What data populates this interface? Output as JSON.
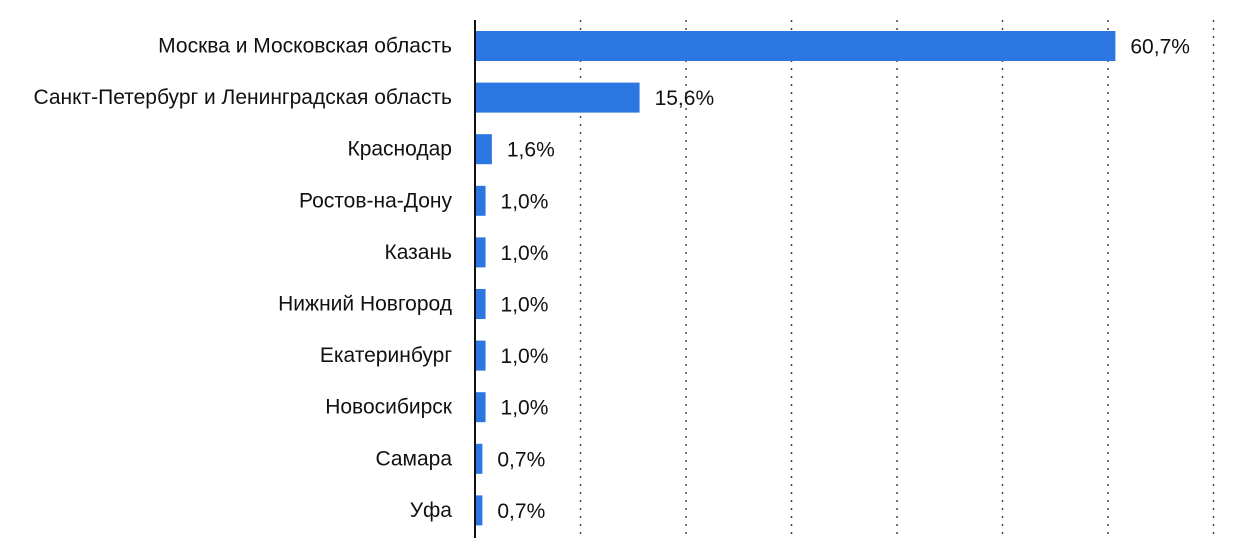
{
  "chart_data": {
    "type": "bar",
    "orientation": "horizontal",
    "title": "",
    "xlabel": "",
    "ylabel": "",
    "xlim": [
      0,
      70
    ],
    "grid": true,
    "legend": "none",
    "bar_color": "#2B76E0",
    "categories": [
      "Москва и Московская область",
      "Санкт-Петербург и Ленинградская область",
      "Краснодар",
      "Ростов-на-Дону",
      "Казань",
      "Нижний Новгород",
      "Екатеринбург",
      "Новосибирск",
      "Самара",
      "Уфа"
    ],
    "values": [
      60.7,
      15.6,
      1.6,
      1.0,
      1.0,
      1.0,
      1.0,
      1.0,
      0.7,
      0.7
    ],
    "value_labels": [
      "60,7%",
      "15,6%",
      "1,6%",
      "1,0%",
      "1,0%",
      "1,0%",
      "1,0%",
      "1,0%",
      "0,7%",
      "0,7%"
    ]
  }
}
